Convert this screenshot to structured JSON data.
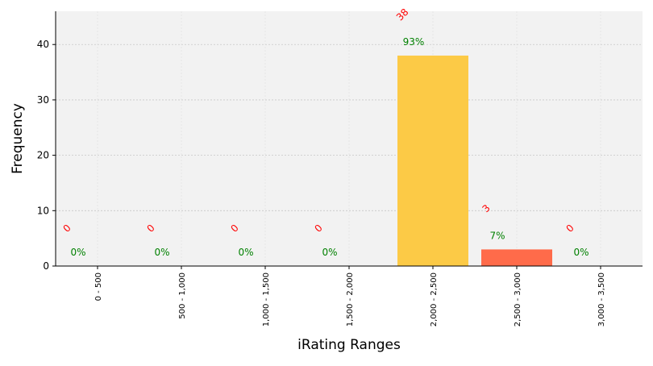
{
  "chart_data": {
    "type": "bar",
    "xlabel": "iRating Ranges",
    "ylabel": "Frequency",
    "ylim": [
      0,
      46
    ],
    "yticks": [
      0,
      10,
      20,
      30,
      40
    ],
    "grid": true,
    "categories": [
      "0 - 500",
      "500 - 1,000",
      "1,000 - 1,500",
      "1,500 - 2,000",
      "2,000 - 2,500",
      "2,500 - 3,000",
      "3,000 - 3,500"
    ],
    "values": [
      0,
      0,
      0,
      0,
      38,
      3,
      0
    ],
    "count_labels": [
      "0",
      "0",
      "0",
      "0",
      "38",
      "3",
      "0"
    ],
    "percent_labels": [
      "0%",
      "0%",
      "0%",
      "0%",
      "93%",
      "7%",
      "0%"
    ],
    "bar_colors": [
      "#fcca46",
      "#fcca46",
      "#fcca46",
      "#fcca46",
      "#fcca46",
      "#ff6b4a",
      "#fcca46"
    ],
    "colors": {
      "plot_background": "#f2f2f2",
      "count_label": "#ff0000",
      "percent_label": "#008000",
      "grid": "#c8c8c8"
    }
  }
}
